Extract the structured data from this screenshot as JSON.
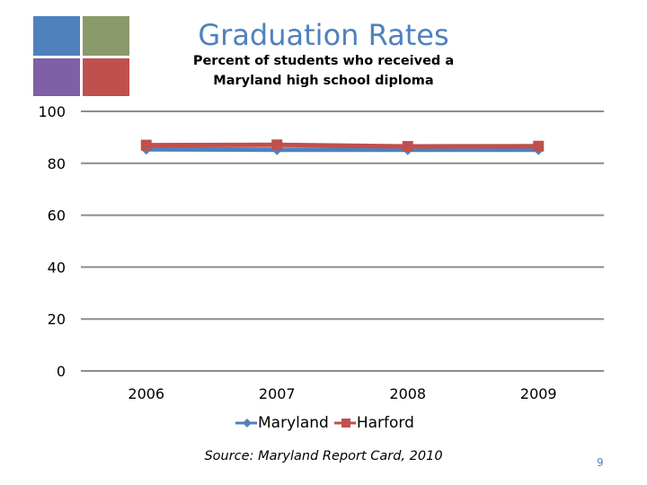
{
  "slide": {
    "title": "Graduation Rates",
    "subtitle_line1": "Percent of students who received a",
    "subtitle_line2": "Maryland high school diploma",
    "source": "Source: Maryland Report Card, 2010",
    "page_number": "9",
    "logo_colors": [
      "#4f81bd",
      "#8a9a6b",
      "#7f5fa6",
      "#c0504d"
    ]
  },
  "chart_data": {
    "type": "line",
    "categories": [
      "2006",
      "2007",
      "2008",
      "2009"
    ],
    "series": [
      {
        "name": "Maryland",
        "values": [
          85.4,
          85.2,
          85.2,
          85.2
        ],
        "color": "#4f81bd",
        "marker": "diamond"
      },
      {
        "name": "Harford",
        "values": [
          87.0,
          87.1,
          86.5,
          86.6
        ],
        "color": "#c0504d",
        "marker": "square"
      }
    ],
    "ylim": [
      0,
      100
    ],
    "yticks": [
      0,
      20,
      40,
      60,
      80,
      100
    ],
    "grid": true,
    "legend": "bottom"
  }
}
